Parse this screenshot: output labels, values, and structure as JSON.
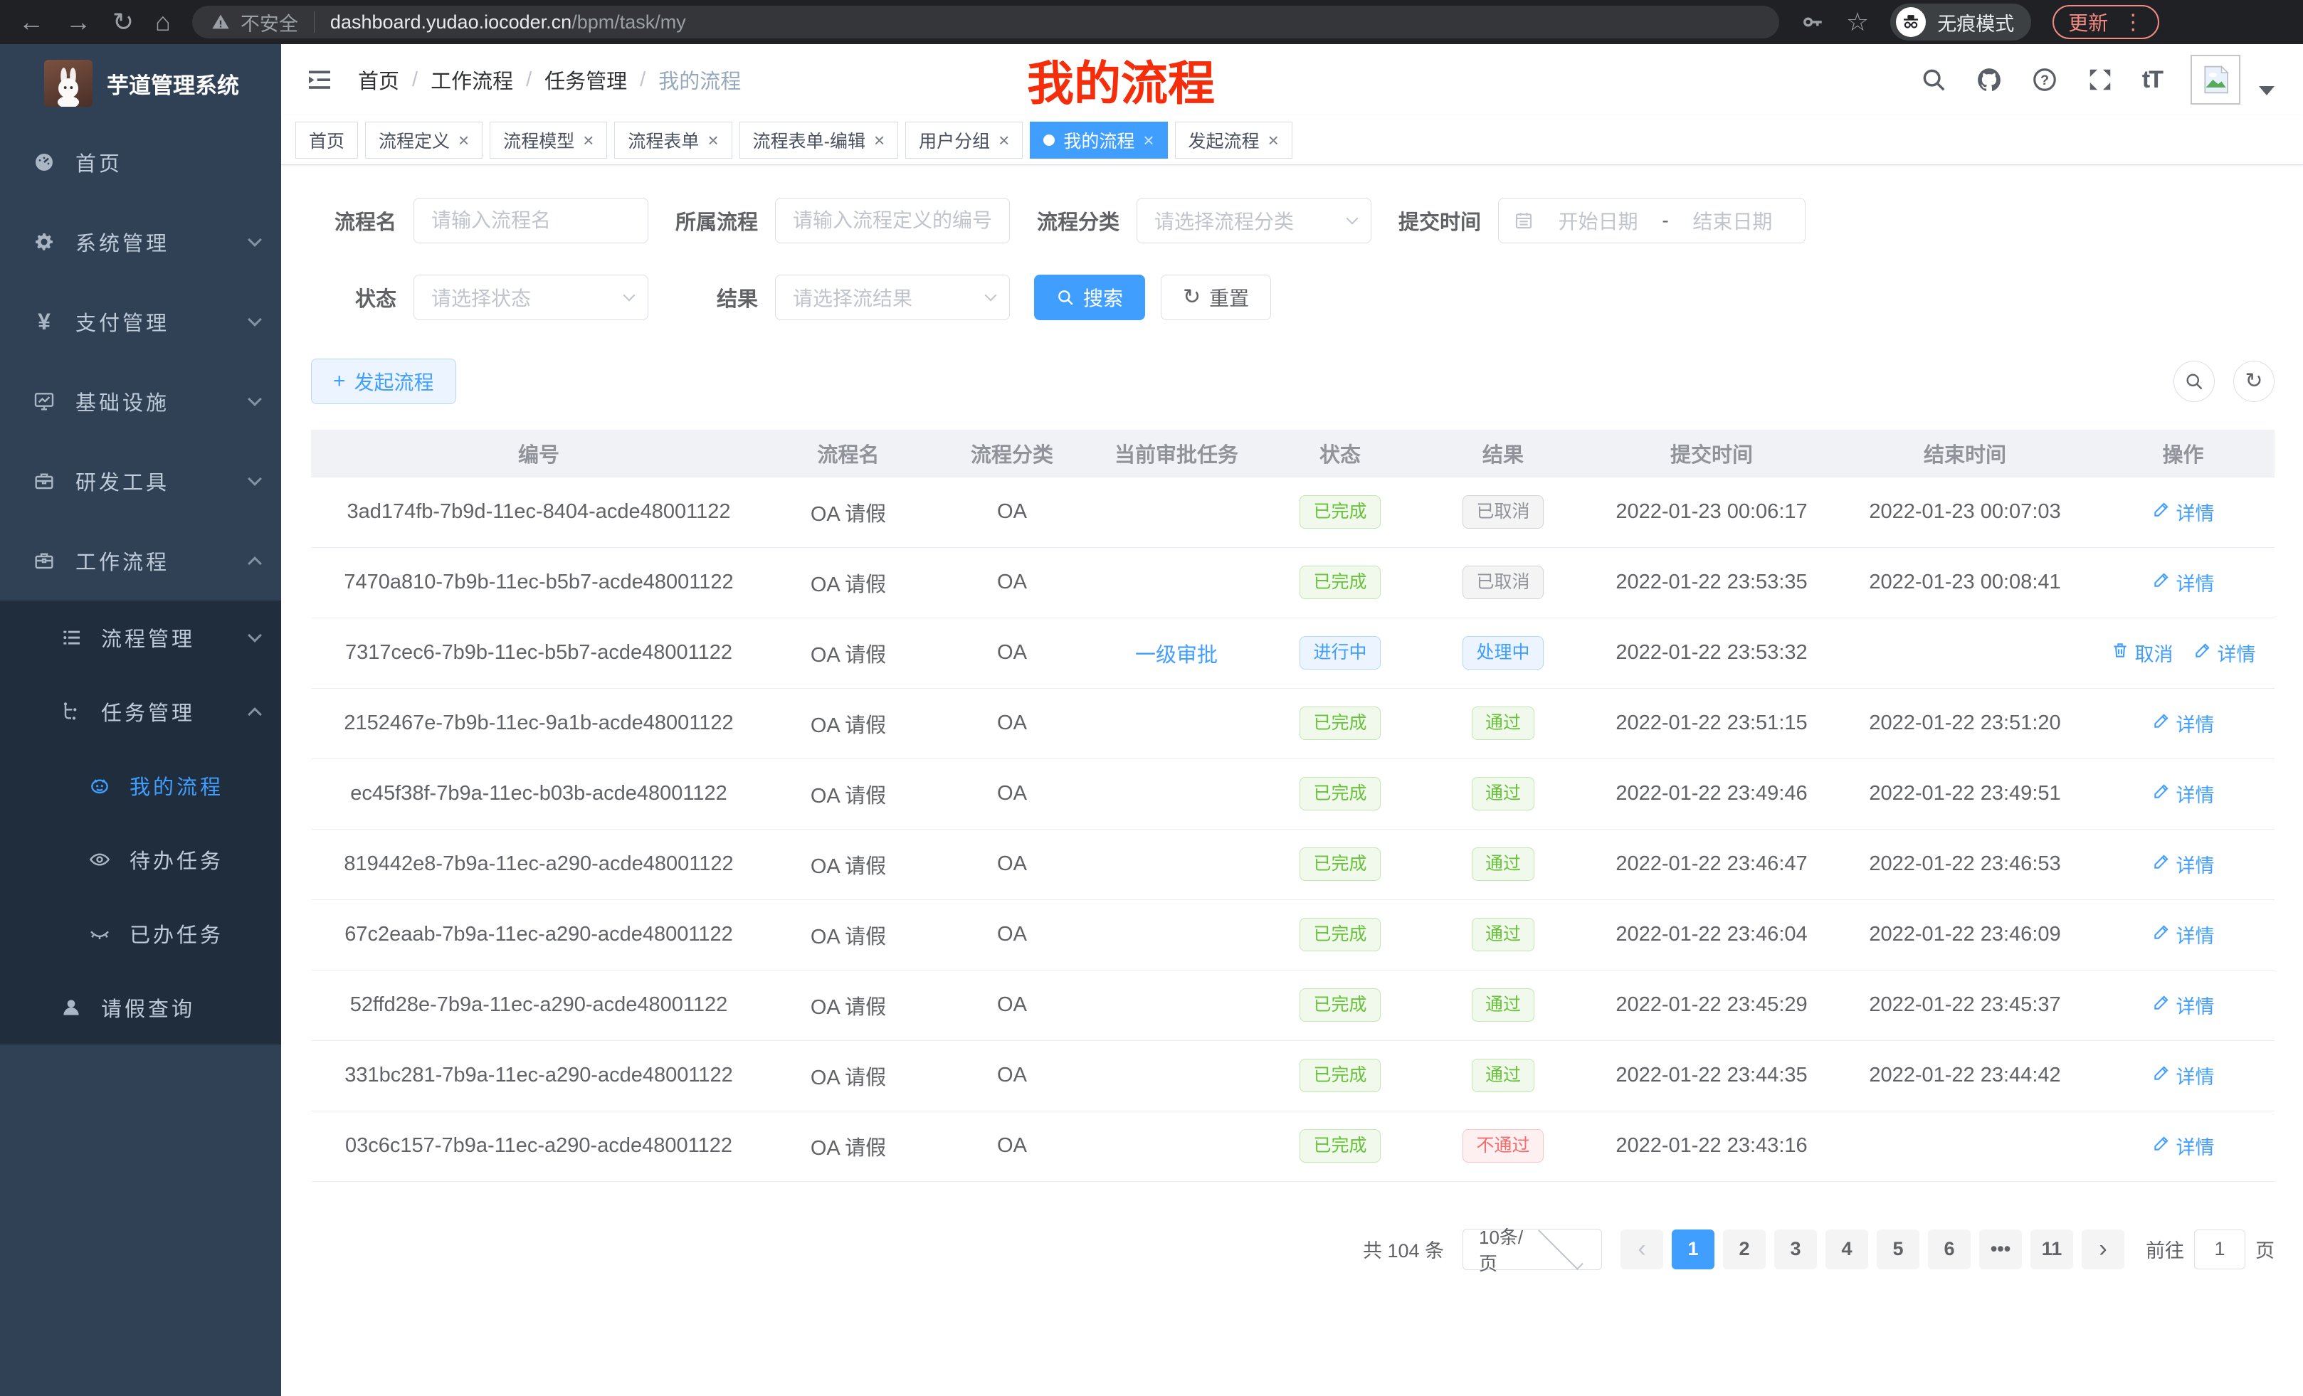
{
  "browser": {
    "security_label": "不安全",
    "url_host": "dashboard.yudao.iocoder.cn",
    "url_path": "/bpm/task/my",
    "incognito_label": "无痕模式",
    "update_label": "更新"
  },
  "sidebar": {
    "title": "芋道管理系统",
    "items": [
      {
        "label": "首页",
        "icon": "dashboard-icon",
        "expandable": false
      },
      {
        "label": "系统管理",
        "icon": "gear-icon",
        "expandable": true
      },
      {
        "label": "支付管理",
        "icon": "yen-icon",
        "expandable": true
      },
      {
        "label": "基础设施",
        "icon": "monitor-icon",
        "expandable": true
      },
      {
        "label": "研发工具",
        "icon": "toolbox-icon",
        "expandable": true
      },
      {
        "label": "工作流程",
        "icon": "briefcase-icon",
        "expandable": true,
        "expanded": true
      }
    ],
    "submenu": {
      "groups": [
        {
          "label": "流程管理",
          "icon": "list-icon",
          "expanded": false
        },
        {
          "label": "任务管理",
          "icon": "tree-icon",
          "expanded": true,
          "children": [
            {
              "label": "我的流程",
              "icon": "robot-face-icon",
              "active": true
            },
            {
              "label": "待办任务",
              "icon": "eye-open-icon",
              "active": false
            },
            {
              "label": "已办任务",
              "icon": "eye-closed-icon",
              "active": false
            }
          ]
        },
        {
          "label": "请假查询",
          "icon": "person-icon",
          "expanded": false
        }
      ]
    }
  },
  "header": {
    "breadcrumb": [
      "首页",
      "工作流程",
      "任务管理",
      "我的流程"
    ],
    "annotation": "我的流程",
    "action_icons": [
      "search-icon",
      "github-icon",
      "question-icon",
      "fullscreen-icon",
      "font-size-icon",
      "avatar",
      "caret-down-icon"
    ],
    "font_size_glyph": "tT"
  },
  "tabs": {
    "items": [
      {
        "label": "首页",
        "closable": false,
        "active": false
      },
      {
        "label": "流程定义",
        "closable": true,
        "active": false
      },
      {
        "label": "流程模型",
        "closable": true,
        "active": false
      },
      {
        "label": "流程表单",
        "closable": true,
        "active": false
      },
      {
        "label": "流程表单-编辑",
        "closable": true,
        "active": false
      },
      {
        "label": "用户分组",
        "closable": true,
        "active": false
      },
      {
        "label": "我的流程",
        "closable": true,
        "active": true
      },
      {
        "label": "发起流程",
        "closable": true,
        "active": false
      }
    ]
  },
  "filters": {
    "process_name": {
      "label": "流程名",
      "placeholder": "请输入流程名"
    },
    "parent_process": {
      "label": "所属流程",
      "placeholder": "请输入流程定义的编号"
    },
    "category": {
      "label": "流程分类",
      "placeholder": "请选择流程分类"
    },
    "submit_time": {
      "label": "提交时间",
      "start_placeholder": "开始日期",
      "separator": "-",
      "end_placeholder": "结束日期"
    },
    "status": {
      "label": "状态",
      "placeholder": "请选择状态"
    },
    "result": {
      "label": "结果",
      "placeholder": "请选择流结果"
    },
    "search_label": "搜索",
    "reset_label": "重置"
  },
  "toolbar": {
    "create_label": "发起流程"
  },
  "table": {
    "columns": [
      "编号",
      "流程名",
      "流程分类",
      "当前审批任务",
      "状态",
      "结果",
      "提交时间",
      "结束时间",
      "操作"
    ],
    "rows": [
      {
        "id": "3ad174fb-7b9d-11ec-8404-acde48001122",
        "name": "OA 请假",
        "category": "OA",
        "current_task": "",
        "status": {
          "label": "已完成",
          "type": "success"
        },
        "result": {
          "label": "已取消",
          "type": "info"
        },
        "submit_time": "2022-01-23 00:06:17",
        "end_time": "2022-01-23 00:07:03",
        "actions": [
          {
            "label": "详情",
            "icon": "edit-icon"
          }
        ]
      },
      {
        "id": "7470a810-7b9b-11ec-b5b7-acde48001122",
        "name": "OA 请假",
        "category": "OA",
        "current_task": "",
        "status": {
          "label": "已完成",
          "type": "success"
        },
        "result": {
          "label": "已取消",
          "type": "info"
        },
        "submit_time": "2022-01-22 23:53:35",
        "end_time": "2022-01-23 00:08:41",
        "actions": [
          {
            "label": "详情",
            "icon": "edit-icon"
          }
        ]
      },
      {
        "id": "7317cec6-7b9b-11ec-b5b7-acde48001122",
        "name": "OA 请假",
        "category": "OA",
        "current_task": "一级审批",
        "status": {
          "label": "进行中",
          "type": "primary"
        },
        "result": {
          "label": "处理中",
          "type": "primary"
        },
        "submit_time": "2022-01-22 23:53:32",
        "end_time": "",
        "actions": [
          {
            "label": "取消",
            "icon": "trash-icon"
          },
          {
            "label": "详情",
            "icon": "edit-icon"
          }
        ]
      },
      {
        "id": "2152467e-7b9b-11ec-9a1b-acde48001122",
        "name": "OA 请假",
        "category": "OA",
        "current_task": "",
        "status": {
          "label": "已完成",
          "type": "success"
        },
        "result": {
          "label": "通过",
          "type": "success"
        },
        "submit_time": "2022-01-22 23:51:15",
        "end_time": "2022-01-22 23:51:20",
        "actions": [
          {
            "label": "详情",
            "icon": "edit-icon"
          }
        ]
      },
      {
        "id": "ec45f38f-7b9a-11ec-b03b-acde48001122",
        "name": "OA 请假",
        "category": "OA",
        "current_task": "",
        "status": {
          "label": "已完成",
          "type": "success"
        },
        "result": {
          "label": "通过",
          "type": "success"
        },
        "submit_time": "2022-01-22 23:49:46",
        "end_time": "2022-01-22 23:49:51",
        "actions": [
          {
            "label": "详情",
            "icon": "edit-icon"
          }
        ]
      },
      {
        "id": "819442e8-7b9a-11ec-a290-acde48001122",
        "name": "OA 请假",
        "category": "OA",
        "current_task": "",
        "status": {
          "label": "已完成",
          "type": "success"
        },
        "result": {
          "label": "通过",
          "type": "success"
        },
        "submit_time": "2022-01-22 23:46:47",
        "end_time": "2022-01-22 23:46:53",
        "actions": [
          {
            "label": "详情",
            "icon": "edit-icon"
          }
        ]
      },
      {
        "id": "67c2eaab-7b9a-11ec-a290-acde48001122",
        "name": "OA 请假",
        "category": "OA",
        "current_task": "",
        "status": {
          "label": "已完成",
          "type": "success"
        },
        "result": {
          "label": "通过",
          "type": "success"
        },
        "submit_time": "2022-01-22 23:46:04",
        "end_time": "2022-01-22 23:46:09",
        "actions": [
          {
            "label": "详情",
            "icon": "edit-icon"
          }
        ]
      },
      {
        "id": "52ffd28e-7b9a-11ec-a290-acde48001122",
        "name": "OA 请假",
        "category": "OA",
        "current_task": "",
        "status": {
          "label": "已完成",
          "type": "success"
        },
        "result": {
          "label": "通过",
          "type": "success"
        },
        "submit_time": "2022-01-22 23:45:29",
        "end_time": "2022-01-22 23:45:37",
        "actions": [
          {
            "label": "详情",
            "icon": "edit-icon"
          }
        ]
      },
      {
        "id": "331bc281-7b9a-11ec-a290-acde48001122",
        "name": "OA 请假",
        "category": "OA",
        "current_task": "",
        "status": {
          "label": "已完成",
          "type": "success"
        },
        "result": {
          "label": "通过",
          "type": "success"
        },
        "submit_time": "2022-01-22 23:44:35",
        "end_time": "2022-01-22 23:44:42",
        "actions": [
          {
            "label": "详情",
            "icon": "edit-icon"
          }
        ]
      },
      {
        "id": "03c6c157-7b9a-11ec-a290-acde48001122",
        "name": "OA 请假",
        "category": "OA",
        "current_task": "",
        "status": {
          "label": "已完成",
          "type": "success"
        },
        "result": {
          "label": "不通过",
          "type": "danger"
        },
        "submit_time": "2022-01-22 23:43:16",
        "end_time": "",
        "actions": [
          {
            "label": "详情",
            "icon": "edit-icon"
          }
        ]
      }
    ]
  },
  "pagination": {
    "total_text": "共 104 条",
    "page_size": "10条/页",
    "prev": "‹",
    "next": "›",
    "pages": [
      "1",
      "2",
      "3",
      "4",
      "5",
      "6",
      "•••",
      "11"
    ],
    "active_page": "1",
    "goto_prefix": "前往",
    "goto_value": "1",
    "goto_suffix": "页"
  },
  "colors": {
    "accent": "#409eff",
    "annotation_red": "#f52d0a",
    "sidebar_bg": "#304156",
    "submenu_bg": "#1f2d3d",
    "success": "#67c23a",
    "danger": "#f56c6c",
    "info": "#909399"
  }
}
